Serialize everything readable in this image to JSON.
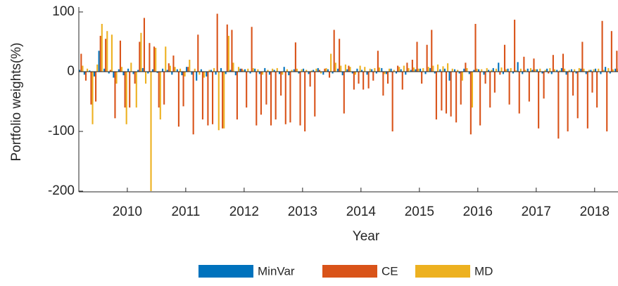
{
  "chart_data": {
    "type": "bar",
    "x_label": "Year",
    "y_label": "Portfolio weights(%)",
    "x": [
      2009.21,
      2009.29,
      2009.38,
      2009.46,
      2009.54,
      2009.63,
      2009.71,
      2009.79,
      2009.88,
      2009.96,
      2010.04,
      2010.13,
      2010.21,
      2010.29,
      2010.38,
      2010.46,
      2010.54,
      2010.63,
      2010.71,
      2010.79,
      2010.88,
      2010.96,
      2011.04,
      2011.13,
      2011.21,
      2011.29,
      2011.38,
      2011.46,
      2011.54,
      2011.63,
      2011.71,
      2011.79,
      2011.88,
      2011.96,
      2012.04,
      2012.13,
      2012.21,
      2012.29,
      2012.38,
      2012.46,
      2012.54,
      2012.63,
      2012.71,
      2012.79,
      2012.88,
      2012.96,
      2013.04,
      2013.13,
      2013.21,
      2013.29,
      2013.38,
      2013.46,
      2013.54,
      2013.63,
      2013.71,
      2013.79,
      2013.88,
      2013.96,
      2014.04,
      2014.13,
      2014.21,
      2014.29,
      2014.38,
      2014.46,
      2014.54,
      2014.63,
      2014.71,
      2014.79,
      2014.88,
      2014.96,
      2015.04,
      2015.13,
      2015.21,
      2015.29,
      2015.38,
      2015.46,
      2015.54,
      2015.63,
      2015.71,
      2015.79,
      2015.88,
      2015.96,
      2016.04,
      2016.13,
      2016.21,
      2016.29,
      2016.38,
      2016.46,
      2016.54,
      2016.63,
      2016.71,
      2016.79,
      2016.88,
      2016.96,
      2017.04,
      2017.13,
      2017.21,
      2017.29,
      2017.38,
      2017.46,
      2017.54,
      2017.63,
      2017.71,
      2017.79,
      2017.88,
      2017.96,
      2018.04,
      2018.13,
      2018.21,
      2018.29,
      2018.38
    ],
    "series": [
      {
        "name": "MinVar",
        "color": "#0072BD",
        "values": [
          3,
          -5,
          2,
          -8,
          35,
          5,
          -3,
          -10,
          4,
          -6,
          5,
          -4,
          3,
          6,
          -3,
          4,
          -2,
          5,
          3,
          -5,
          4,
          -6,
          8,
          -5,
          -15,
          4,
          -8,
          3,
          -5,
          6,
          -4,
          3,
          -6,
          5,
          4,
          -3,
          5,
          -4,
          6,
          -5,
          3,
          -4,
          8,
          -6,
          4,
          -3,
          5,
          -4,
          3,
          6,
          -5,
          4,
          -3,
          5,
          -6,
          4,
          -3,
          5,
          3,
          -5,
          4,
          -3,
          6,
          -4,
          5,
          -3,
          4,
          -5,
          3,
          4,
          5,
          -4,
          6,
          -3,
          4,
          5,
          -15,
          4,
          -3,
          5,
          -4,
          3,
          4,
          -5,
          3,
          6,
          15,
          -4,
          5,
          -3,
          16,
          -4,
          5,
          3,
          4,
          -3,
          5,
          -4,
          3,
          6,
          -5,
          4,
          -3,
          5,
          -4,
          3,
          5,
          -4,
          8,
          -3,
          5
        ]
      },
      {
        "name": "CE",
        "color": "#D95319",
        "values": [
          30,
          -15,
          -55,
          -50,
          60,
          55,
          3,
          -78,
          52,
          -60,
          -60,
          -20,
          50,
          90,
          48,
          42,
          -60,
          -55,
          14,
          27,
          -92,
          -58,
          8,
          -105,
          62,
          -80,
          -90,
          -88,
          97,
          -95,
          79,
          70,
          -80,
          5,
          -60,
          75,
          -90,
          -72,
          -55,
          -90,
          -80,
          -40,
          -88,
          -85,
          49,
          -90,
          -100,
          -25,
          -75,
          3,
          5,
          -10,
          70,
          55,
          -70,
          10,
          -30,
          -20,
          -30,
          -28,
          -15,
          35,
          -40,
          -20,
          -100,
          10,
          -30,
          15,
          20,
          50,
          -20,
          45,
          70,
          -80,
          -65,
          -70,
          -75,
          -85,
          -55,
          15,
          -105,
          80,
          -90,
          -20,
          -60,
          -35,
          -5,
          45,
          -55,
          87,
          -70,
          25,
          -50,
          22,
          -95,
          -45,
          -3,
          28,
          -112,
          30,
          -100,
          -40,
          -78,
          50,
          -95,
          -35,
          -60,
          85,
          -100,
          68,
          35
        ]
      },
      {
        "name": "MD",
        "color": "#EDB120",
        "values": [
          10,
          5,
          -88,
          12,
          80,
          68,
          62,
          -20,
          8,
          -88,
          15,
          -60,
          65,
          -20,
          -200,
          40,
          -80,
          42,
          10,
          8,
          5,
          -8,
          20,
          5,
          -5,
          -10,
          3,
          6,
          -98,
          -95,
          60,
          15,
          8,
          3,
          5,
          6,
          4,
          -5,
          3,
          5,
          6,
          -5,
          4,
          3,
          5,
          4,
          3,
          2,
          5,
          -3,
          6,
          30,
          15,
          10,
          12,
          8,
          -5,
          10,
          8,
          5,
          6,
          7,
          -4,
          5,
          3,
          8,
          10,
          6,
          7,
          5,
          6,
          8,
          10,
          12,
          9,
          14,
          5,
          3,
          -15,
          6,
          -60,
          5,
          4,
          6,
          3,
          5,
          7,
          4,
          6,
          2,
          5,
          3,
          6,
          4,
          5,
          3,
          6,
          4,
          2,
          5,
          3,
          4,
          6,
          5,
          3,
          4,
          5,
          3,
          6,
          4,
          5
        ]
      }
    ],
    "xlim": [
      2009.17,
      2018.4
    ],
    "xticks": [
      2010,
      2011,
      2012,
      2013,
      2014,
      2015,
      2016,
      2017,
      2018
    ],
    "ylim": [
      -200,
      100
    ],
    "yticks": [
      -200,
      -100,
      0,
      100
    ],
    "legend": "bottom"
  }
}
